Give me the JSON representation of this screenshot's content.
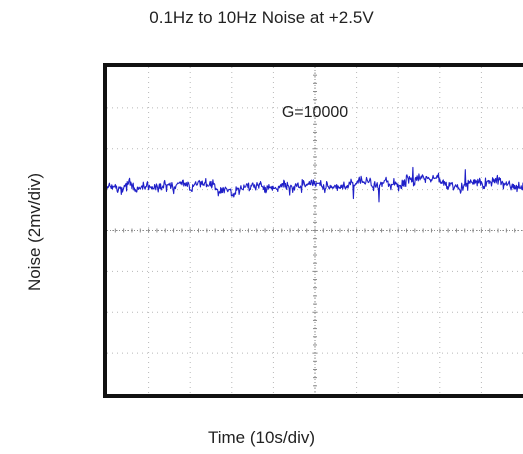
{
  "chart_data": {
    "type": "line",
    "title": "0.1Hz to 10Hz Noise at +2.5V",
    "xlabel": "Time (10s/div)",
    "ylabel": "Noise (2mv/div)",
    "annotation": "G=10000",
    "x_divisions": 10,
    "y_divisions": 8,
    "grid": true,
    "series": [
      {
        "color": "#1f1fc8",
        "trace_level_div": 1.1,
        "trace_peak_to_peak_div": 0.9,
        "sample_count": 700
      }
    ]
  }
}
